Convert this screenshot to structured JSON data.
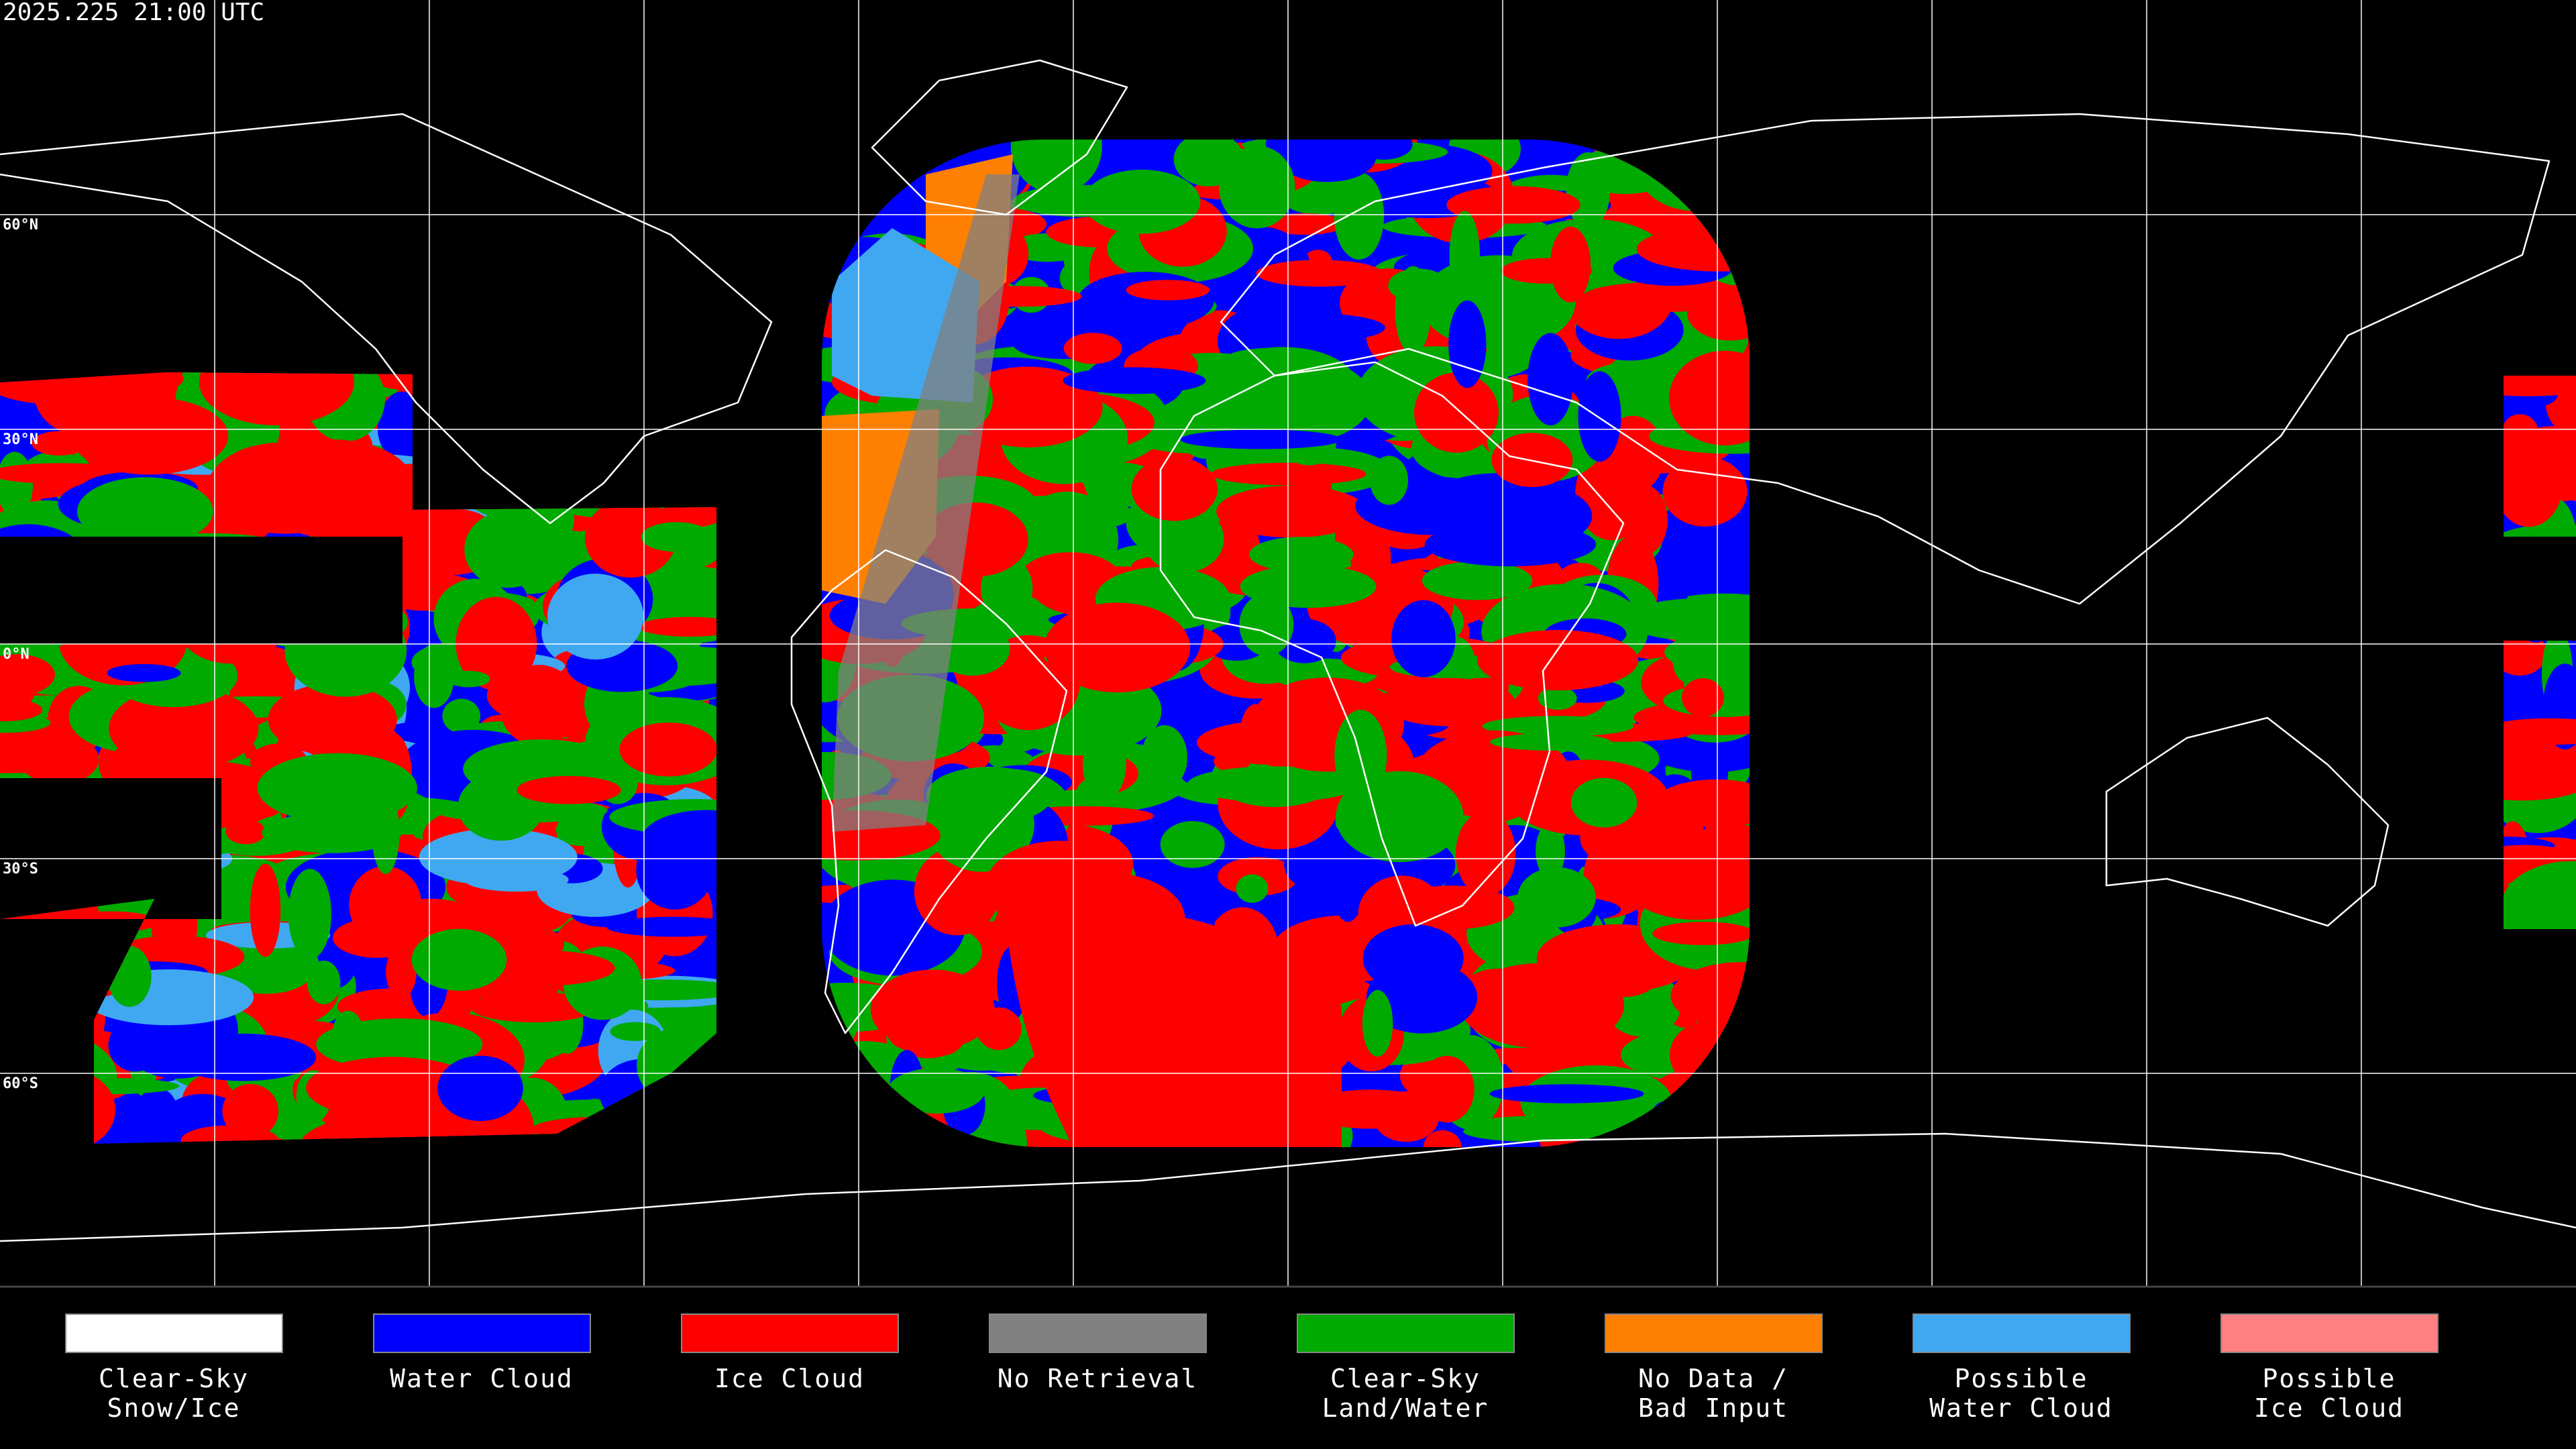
{
  "header": {
    "timestamp": "2025.225 21:00 UTC"
  },
  "latitude_labels": [
    "60°N",
    "30°N",
    "0°N",
    "30°S",
    "60°S"
  ],
  "legend": [
    {
      "lines": [
        "Clear-Sky",
        "Snow/Ice"
      ],
      "color": "#ffffff"
    },
    {
      "lines": [
        "Water Cloud"
      ],
      "color": "#0000ff"
    },
    {
      "lines": [
        "Ice Cloud"
      ],
      "color": "#ff0000"
    },
    {
      "lines": [
        "No Retrieval"
      ],
      "color": "#808080"
    },
    {
      "lines": [
        "Clear-Sky",
        "Land/Water"
      ],
      "color": "#00aa00"
    },
    {
      "lines": [
        "No Data /",
        "Bad Input"
      ],
      "color": "#ff8000"
    },
    {
      "lines": [
        "Possible",
        "Water Cloud"
      ],
      "color": "#40a8f0"
    },
    {
      "lines": [
        "Possible",
        "Ice Cloud"
      ],
      "color": "#ff8080"
    }
  ]
}
